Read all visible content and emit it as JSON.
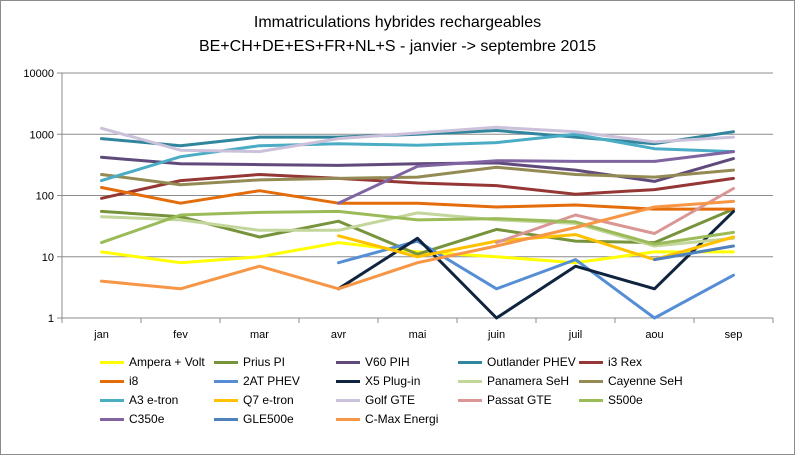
{
  "chart_data": {
    "type": "line",
    "title": "Immatriculations hybrides rechargeables",
    "subtitle": "BE+CH+DE+ES+FR+NL+S - janvier -> septembre 2015",
    "xlabel": "",
    "ylabel": "",
    "yscale": "log",
    "ylim": [
      1,
      10000
    ],
    "yticks": [
      "1",
      "10",
      "100",
      "1000",
      "10000"
    ],
    "categories": [
      "jan",
      "fev",
      "mar",
      "avr",
      "mai",
      "juin",
      "juil",
      "aou",
      "sep"
    ],
    "grid": "horizontal",
    "legend_position": "bottom",
    "series": [
      {
        "name": "Ampera + Volt",
        "color": "#ffff00",
        "values": [
          12,
          8,
          10,
          17,
          12,
          10,
          8,
          12,
          12
        ]
      },
      {
        "name": "Prius PI",
        "color": "#77933c",
        "values": [
          55,
          45,
          21,
          38,
          11,
          28,
          18,
          17,
          60
        ]
      },
      {
        "name": "V60 PIH",
        "color": "#604a7b",
        "values": [
          420,
          330,
          320,
          310,
          330,
          340,
          260,
          170,
          400
        ]
      },
      {
        "name": "Outlander PHEV",
        "color": "#31859c",
        "values": [
          850,
          650,
          900,
          900,
          1000,
          1150,
          900,
          700,
          1100
        ]
      },
      {
        "name": "i3 Rex",
        "color": "#953735",
        "values": [
          90,
          175,
          220,
          190,
          160,
          145,
          105,
          125,
          190
        ]
      },
      {
        "name": "i8",
        "color": "#e46c0a",
        "values": [
          135,
          75,
          120,
          75,
          75,
          65,
          70,
          60,
          60
        ]
      },
      {
        "name": "2AT PHEV",
        "color": "#558ed5",
        "values": [
          null,
          null,
          null,
          8,
          18,
          3,
          9,
          1,
          5
        ]
      },
      {
        "name": "X5 Plug-in",
        "color": "#0f243e",
        "values": [
          null,
          null,
          null,
          3,
          20,
          1,
          7,
          3,
          55
        ]
      },
      {
        "name": "Panamera SeH",
        "color": "#c3d69b",
        "values": [
          45,
          40,
          27,
          27,
          52,
          40,
          35,
          15,
          20
        ]
      },
      {
        "name": "Cayenne SeH",
        "color": "#948a54",
        "values": [
          220,
          150,
          180,
          190,
          200,
          290,
          220,
          200,
          260
        ]
      },
      {
        "name": "A3 e-tron",
        "color": "#4bacc6",
        "values": [
          175,
          430,
          650,
          700,
          660,
          730,
          1000,
          580,
          520
        ]
      },
      {
        "name": "Q7 e-tron",
        "color": "#ffc000",
        "values": [
          null,
          null,
          null,
          22,
          10,
          18,
          23,
          9,
          21
        ]
      },
      {
        "name": "Golf GTE",
        "color": "#ccc1da",
        "values": [
          1250,
          550,
          520,
          850,
          1050,
          1300,
          1100,
          750,
          900
        ]
      },
      {
        "name": "Passat GTE",
        "color": "#d99694",
        "values": [
          null,
          null,
          null,
          null,
          null,
          17,
          48,
          24,
          130
        ]
      },
      {
        "name": "S500e",
        "color": "#9bbb59",
        "values": [
          17,
          48,
          53,
          55,
          40,
          42,
          37,
          16,
          25
        ]
      },
      {
        "name": "C350e",
        "color": "#8064a2",
        "values": [
          null,
          null,
          null,
          75,
          300,
          370,
          360,
          360,
          520
        ]
      },
      {
        "name": "GLE500e",
        "color": "#4f81bd",
        "values": [
          null,
          null,
          null,
          null,
          null,
          null,
          null,
          9,
          15
        ]
      },
      {
        "name": "C-Max Energi",
        "color": "#f79646",
        "values": [
          4,
          3,
          7,
          3,
          8,
          15,
          30,
          65,
          80
        ]
      }
    ]
  }
}
